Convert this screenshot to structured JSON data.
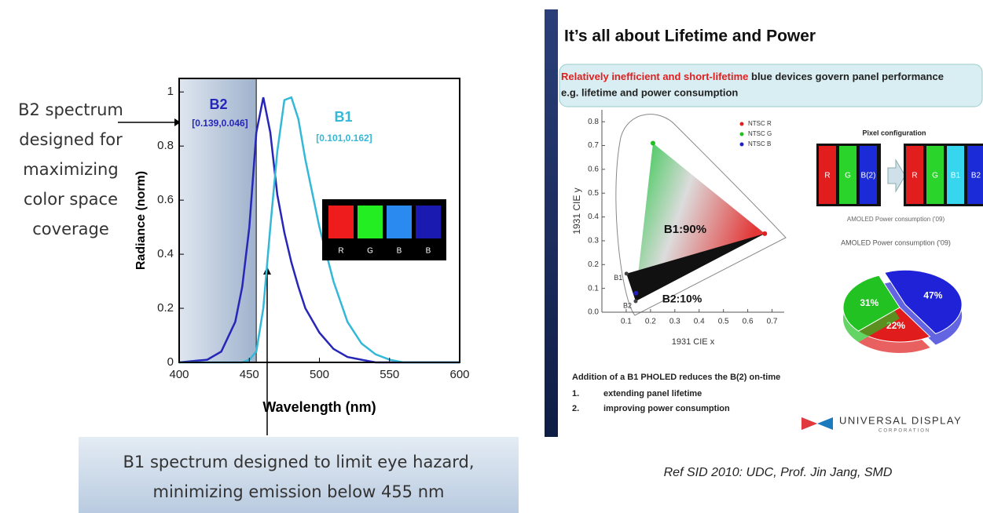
{
  "notes": {
    "left_note": [
      "B2 spectrum",
      "designed for",
      "maximizing",
      "color space",
      "coverage"
    ],
    "bottom_note": [
      "B1 spectrum designed to limit eye hazard,",
      "minimizing emission below 455 nm"
    ],
    "ref": "Ref SID 2010:  UDC, Prof. Jin Jang, SMD"
  },
  "slide": {
    "title": "It’s all about Lifetime and Power",
    "banner_red": "Relatively inefficient and short-lifetime",
    "banner_rest": " blue devices govern panel performance",
    "banner_line2": "e.g. lifetime and power consumption",
    "pixel_title": "Pixel configuration",
    "pixels_before": [
      "R",
      "G",
      "B(2)"
    ],
    "pixels_before_colors": [
      "#e21d1d",
      "#2bd42b",
      "#1c2bd8"
    ],
    "pixels_after": [
      "R",
      "G",
      "B1",
      "B2"
    ],
    "pixels_after_colors": [
      "#e21d1d",
      "#2bd42b",
      "#35d6ee",
      "#1c2bd8"
    ],
    "footer_heading": "Addition of a B1 PHOLED reduces the B(2) on-time",
    "footer_items": [
      [
        "1.",
        "extending panel lifetime"
      ],
      [
        "2.",
        "improving power consumption"
      ]
    ],
    "logo": "UNIVERSAL DISPLAY",
    "logo_sub": "CORPORATION"
  },
  "chart_data": [
    {
      "type": "line",
      "xlabel": "Wavelength (nm)",
      "ylabel": "Radiance (norm)",
      "x": [
        400,
        420,
        430,
        440,
        445,
        450,
        455,
        460,
        465,
        470,
        475,
        480,
        485,
        490,
        500,
        510,
        520,
        530,
        540,
        550,
        560,
        600
      ],
      "series": [
        {
          "name": "B2",
          "color": "#2626b8",
          "values": [
            0,
            0.01,
            0.04,
            0.15,
            0.28,
            0.5,
            0.85,
            0.98,
            0.85,
            0.62,
            0.48,
            0.37,
            0.28,
            0.2,
            0.11,
            0.05,
            0.02,
            0.01,
            0,
            0,
            0,
            0
          ]
        },
        {
          "name": "B1",
          "color": "#33b8d8",
          "values": [
            0,
            0,
            0,
            0,
            0,
            0.01,
            0.04,
            0.2,
            0.5,
            0.78,
            0.97,
            0.98,
            0.9,
            0.75,
            0.5,
            0.3,
            0.15,
            0.07,
            0.03,
            0.01,
            0,
            0
          ]
        }
      ],
      "series_labels": [
        "[0.139,0.046]",
        "[0.101,0.162]"
      ],
      "xlim": [
        400,
        600
      ],
      "ylim": [
        0,
        1.05
      ],
      "xticks": [
        400,
        450,
        500,
        550,
        600
      ],
      "yticks": [
        0,
        0.2,
        0.4,
        0.6,
        0.8,
        1
      ],
      "shaded_range": [
        400,
        455
      ],
      "inset": {
        "labels": [
          "R",
          "G",
          "B",
          "B"
        ],
        "colors": [
          "#ee1c1c",
          "#22ee22",
          "#2a8af0",
          "#1a1ab0"
        ]
      }
    },
    {
      "type": "scatter",
      "xlabel": "1931 CIE x",
      "ylabel": "1931 CIE y",
      "xlim": [
        0,
        0.75
      ],
      "ylim": [
        0,
        0.85
      ],
      "xticks": [
        0.1,
        0.2,
        0.3,
        0.4,
        0.5,
        0.6,
        0.7
      ],
      "yticks": [
        {
          "value": 0,
          "label": "0.0"
        },
        0.1,
        0.2,
        0.3,
        0.4,
        0.5,
        0.6,
        0.7,
        0.8
      ],
      "series": [
        {
          "name": "NTSC R",
          "color": "#e02020",
          "x": [
            0.67
          ],
          "values": [
            0.33
          ]
        },
        {
          "name": "NTSC G",
          "color": "#20c020",
          "x": [
            0.21
          ],
          "values": [
            0.71
          ]
        },
        {
          "name": "NTSC B",
          "color": "#2020c0",
          "x": [
            0.14
          ],
          "values": [
            0.08
          ]
        }
      ],
      "points": [
        {
          "label": "B1",
          "x": 0.101,
          "y": 0.162
        },
        {
          "label": "B2",
          "x": 0.139,
          "y": 0.046
        }
      ],
      "annotations": [
        "B1:90%",
        "B2:10%"
      ]
    },
    {
      "type": "pie",
      "title": "AMOLED Power consumption ('09)",
      "values": [
        47,
        22,
        31
      ],
      "value_labels": [
        "47%",
        "22%",
        "31%"
      ],
      "colors": [
        "#1f22d6",
        "#e01c1c",
        "#22c222"
      ]
    }
  ]
}
